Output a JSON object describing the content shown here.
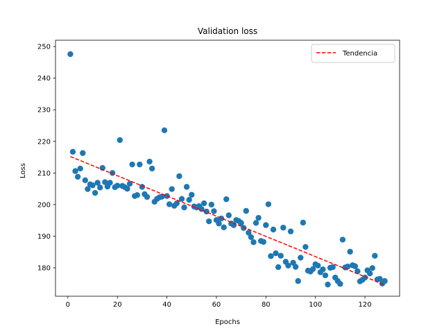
{
  "chart_data": {
    "type": "scatter",
    "title": "Validation loss",
    "xlabel": "Epochs",
    "ylabel": "Loss",
    "xlim": [
      -5,
      134
    ],
    "ylim": [
      171,
      252
    ],
    "xticks": [
      0,
      20,
      40,
      60,
      80,
      100,
      120
    ],
    "yticks": [
      180,
      190,
      200,
      210,
      220,
      230,
      240,
      250
    ],
    "grid": false,
    "legend": {
      "placement": "top-right",
      "entries": [
        "Tendencia"
      ]
    },
    "colors": {
      "points": "#1f77b4",
      "trend": "#ff0000"
    },
    "series": [
      {
        "type": "scatter",
        "x": [
          1,
          2,
          3,
          4,
          5,
          6,
          7,
          8,
          9,
          10,
          11,
          12,
          13,
          14,
          15,
          16,
          17,
          18,
          19,
          20,
          21,
          22,
          23,
          24,
          25,
          26,
          27,
          28,
          29,
          30,
          31,
          32,
          33,
          34,
          35,
          36,
          37,
          38,
          39,
          40,
          41,
          42,
          43,
          44,
          45,
          46,
          47,
          48,
          49,
          50,
          51,
          52,
          53,
          54,
          55,
          56,
          57,
          58,
          59,
          60,
          61,
          62,
          63,
          64,
          65,
          66,
          67,
          68,
          69,
          70,
          71,
          72,
          73,
          74,
          75,
          76,
          77,
          78,
          79,
          80,
          81,
          82,
          83,
          84,
          85,
          86,
          87,
          88,
          89,
          90,
          91,
          92,
          93,
          94,
          95,
          96,
          97,
          98,
          99,
          100,
          101,
          102,
          103,
          104,
          105,
          106,
          107,
          108,
          109,
          110,
          111,
          112,
          113,
          114,
          115,
          116,
          117,
          118,
          119,
          120,
          121,
          122,
          123,
          124,
          125,
          126,
          127,
          128
        ],
        "y": [
          247.6,
          216.7,
          210.6,
          208.8,
          211.4,
          216.3,
          207.7,
          204.9,
          206.4,
          206.1,
          203.7,
          206.9,
          205.4,
          211.6,
          207.1,
          205.7,
          206.9,
          210.0,
          205.5,
          206.0,
          220.4,
          205.9,
          205.5,
          205.0,
          206.6,
          212.7,
          202.7,
          203.0,
          212.7,
          205.6,
          203.3,
          202.4,
          213.6,
          211.4,
          200.9,
          201.8,
          202.3,
          202.5,
          223.5,
          202.7,
          200.1,
          204.9,
          199.6,
          200.4,
          209.0,
          201.8,
          199.1,
          205.6,
          201.5,
          203.1,
          199.4,
          199.1,
          199.5,
          198.6,
          200.4,
          197.8,
          194.7,
          200.0,
          197.9,
          195.1,
          194.0,
          195.6,
          192.8,
          201.7,
          196.6,
          194.0,
          193.5,
          195.1,
          194.8,
          194.2,
          192.6,
          198.0,
          191.1,
          189.7,
          188.1,
          194.2,
          195.8,
          188.5,
          188.2,
          193.5,
          200.1,
          183.7,
          192.1,
          184.6,
          180.2,
          183.8,
          192.7,
          181.9,
          180.7,
          191.5,
          181.6,
          180.3,
          175.8,
          183.2,
          194.3,
          186.6,
          179.1,
          178.8,
          179.6,
          181.1,
          180.7,
          178.6,
          179.5,
          177.6,
          174.7,
          180.0,
          180.2,
          176.9,
          175.8,
          174.9,
          188.9,
          180.1,
          180.4,
          185.1,
          180.8,
          180.5,
          178.9,
          175.7,
          176.2,
          176.9,
          179.2,
          178.2,
          179.9,
          183.8,
          176.3,
          176.5,
          175.0,
          175.8
        ]
      },
      {
        "type": "line",
        "name": "Tendencia",
        "x": [
          1,
          128
        ],
        "y": [
          215.2,
          174.6
        ]
      }
    ]
  }
}
